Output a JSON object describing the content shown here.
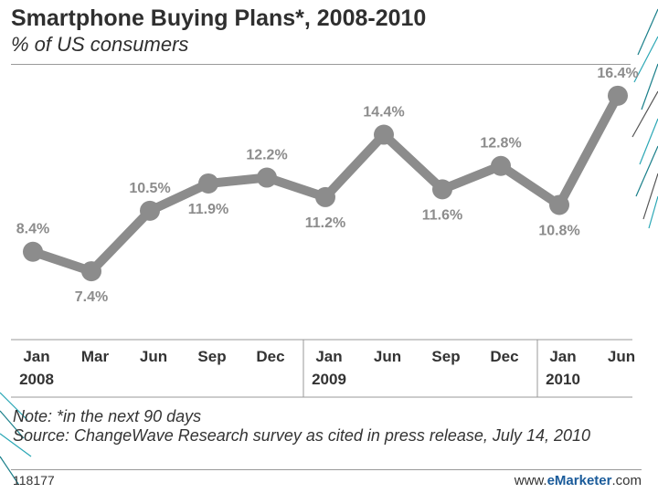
{
  "chart_data": {
    "type": "line",
    "title": "Smartphone Buying Plans*, 2008-2010",
    "subtitle": "% of US consumers",
    "categories": [
      "Jan 2008",
      "Mar",
      "Jun",
      "Sep",
      "Dec",
      "Jan 2009",
      "Jun",
      "Sep",
      "Dec",
      "Jan 2010",
      "Jun"
    ],
    "x_tick_labels": [
      {
        "month": "Jan",
        "year": "2008"
      },
      {
        "month": "Mar",
        "year": ""
      },
      {
        "month": "Jun",
        "year": ""
      },
      {
        "month": "Sep",
        "year": ""
      },
      {
        "month": "Dec",
        "year": ""
      },
      {
        "month": "Jan",
        "year": "2009"
      },
      {
        "month": "Jun",
        "year": ""
      },
      {
        "month": "Sep",
        "year": ""
      },
      {
        "month": "Dec",
        "year": ""
      },
      {
        "month": "Jan",
        "year": "2010"
      },
      {
        "month": "Jun",
        "year": ""
      }
    ],
    "values": [
      8.4,
      7.4,
      10.5,
      11.9,
      12.2,
      11.2,
      14.4,
      11.6,
      12.8,
      10.8,
      16.4
    ],
    "data_labels": [
      "8.4%",
      "7.4%",
      "10.5%",
      "11.9%",
      "12.2%",
      "11.2%",
      "14.4%",
      "11.6%",
      "12.8%",
      "10.8%",
      "16.4%"
    ],
    "label_positions": [
      "above",
      "below",
      "above",
      "below",
      "above",
      "below",
      "above",
      "below",
      "above",
      "below",
      "above"
    ],
    "year_group_starts": [
      0,
      5,
      9
    ],
    "ylim": [
      6,
      17
    ],
    "xlabel": "",
    "ylabel": "",
    "grid": false,
    "colors": {
      "line": "#8c8c8c",
      "label": "#8c8c8c",
      "axis_text": "#333333"
    }
  },
  "note": "Note: *in the next 90 days",
  "source": "Source: ChangeWave Research survey as cited in press release, July 14, 2010",
  "chart_id": "118177",
  "brand": {
    "prefix": "www.",
    "name": "eMarketer",
    "suffix": ".com"
  }
}
